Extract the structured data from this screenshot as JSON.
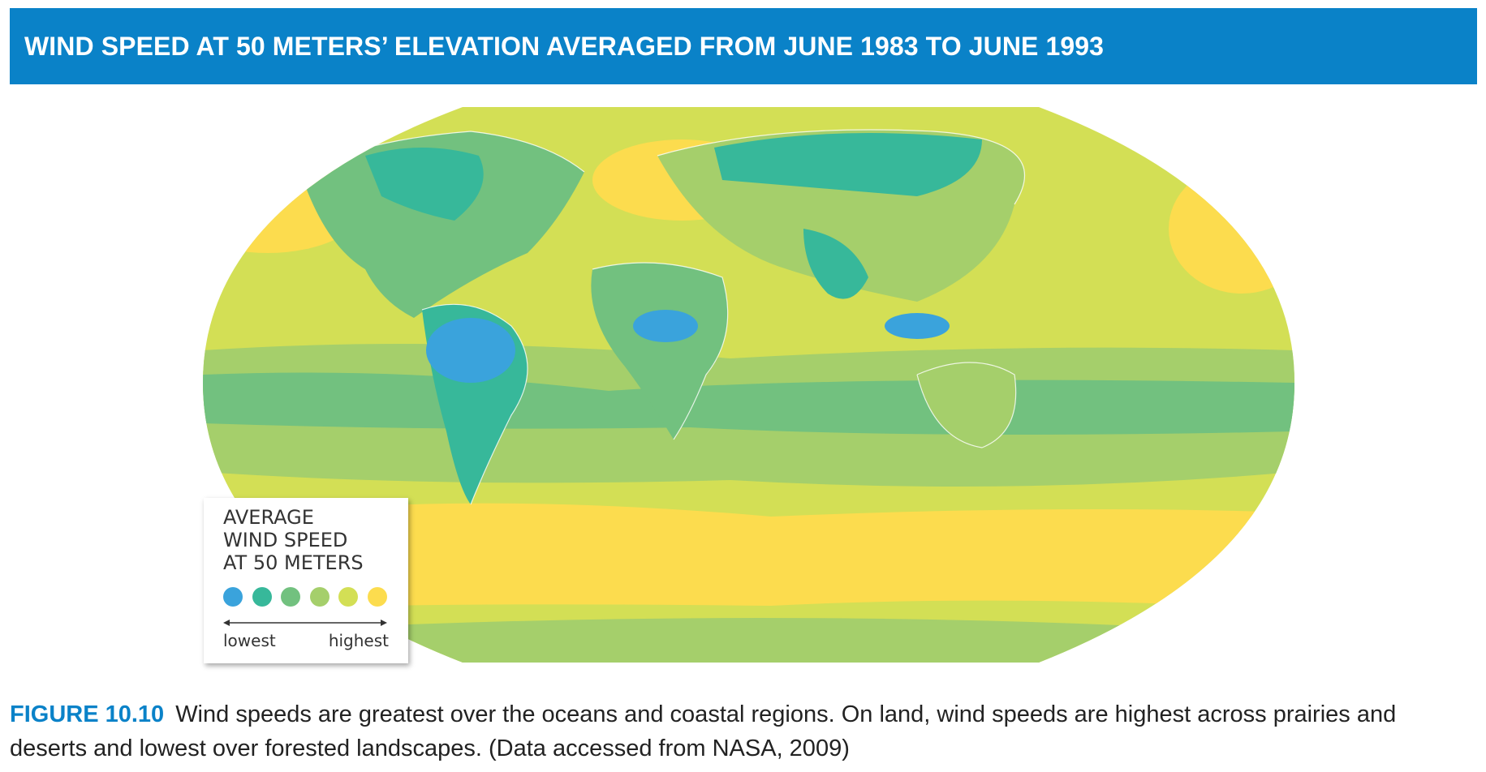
{
  "header": {
    "title": "WIND SPEED AT 50 METERS’ ELEVATION AVERAGED FROM JUNE 1983 TO JUNE 1993"
  },
  "legend": {
    "title_lines": [
      "AVERAGE",
      "WIND SPEED",
      "AT 50 METERS"
    ],
    "low_label": "lowest",
    "high_label": "highest",
    "colors": [
      "#3aa3dc",
      "#37b89a",
      "#72c17f",
      "#a5cf6b",
      "#d3df55",
      "#fcdc4e"
    ]
  },
  "map": {
    "colors": {
      "lowest": "#3aa3dc",
      "low": "#37b89a",
      "mid_low": "#72c17f",
      "mid_high": "#a5cf6b",
      "high": "#d3df55",
      "highest": "#fcdc4e"
    }
  },
  "caption": {
    "label": "FIGURE 10.10",
    "text": "Wind speeds are greatest over the oceans and coastal regions. On land, wind speeds are highest across prairies and deserts and lowest over forested landscapes. (Data accessed from NASA, 2009)"
  }
}
